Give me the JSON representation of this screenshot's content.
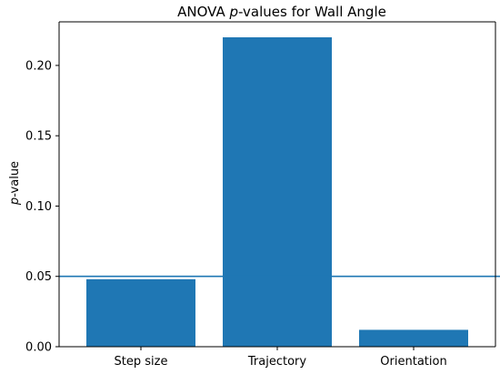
{
  "chart_data": {
    "type": "bar",
    "title_prefix": "ANOVA ",
    "title_italic": "p",
    "title_suffix": "-values for Wall Angle",
    "ylabel_italic": "p",
    "ylabel_suffix": "-value",
    "xlabel": "",
    "categories": [
      "Step size",
      "Trajectory",
      "Orientation"
    ],
    "values": [
      0.048,
      0.22,
      0.012
    ],
    "ylim": [
      0,
      0.231
    ],
    "yticks": [
      0.0,
      0.05,
      0.1,
      0.15,
      0.2
    ],
    "ytick_labels": [
      "0.00",
      "0.05",
      "0.10",
      "0.15",
      "0.20"
    ],
    "reference_line": 0.05,
    "bar_color": "#1f77b4",
    "line_color": "#1f77b4",
    "grid": false,
    "legend": "none"
  }
}
